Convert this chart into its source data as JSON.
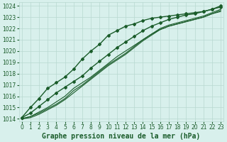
{
  "title": "",
  "xlabel": "Graphe pression niveau de la mer (hPa)",
  "ylabel": "",
  "bg_color": "#d8f0ec",
  "grid_color": "#b8d8d0",
  "line_color": "#1a5c2a",
  "ylim": [
    1013.8,
    1024.3
  ],
  "xlim": [
    -0.3,
    23.3
  ],
  "yticks": [
    1014,
    1015,
    1016,
    1017,
    1018,
    1019,
    1020,
    1021,
    1022,
    1023,
    1024
  ],
  "xticks": [
    0,
    1,
    2,
    3,
    4,
    5,
    6,
    7,
    8,
    9,
    10,
    11,
    12,
    13,
    14,
    15,
    16,
    17,
    18,
    19,
    20,
    21,
    22,
    23
  ],
  "lines": [
    {
      "y": [
        1014.1,
        1015.0,
        1015.8,
        1016.7,
        1017.2,
        1017.7,
        1018.4,
        1019.3,
        1020.0,
        1020.6,
        1021.4,
        1021.8,
        1022.2,
        1022.4,
        1022.7,
        1022.9,
        1023.0,
        1023.1,
        1023.2,
        1023.3,
        1023.4,
        1023.5,
        1023.7,
        1023.9
      ],
      "marker": true,
      "lw": 1.0
    },
    {
      "y": [
        1014.0,
        1014.2,
        1014.6,
        1015.0,
        1015.5,
        1016.0,
        1016.7,
        1017.2,
        1017.7,
        1018.3,
        1018.9,
        1019.5,
        1020.0,
        1020.5,
        1021.0,
        1021.5,
        1021.9,
        1022.2,
        1022.4,
        1022.6,
        1022.8,
        1023.0,
        1023.3,
        1023.6
      ],
      "marker": false,
      "lw": 0.8
    },
    {
      "y": [
        1014.0,
        1014.2,
        1014.5,
        1014.9,
        1015.3,
        1015.8,
        1016.5,
        1017.0,
        1017.6,
        1018.2,
        1018.8,
        1019.3,
        1019.8,
        1020.4,
        1021.0,
        1021.5,
        1022.0,
        1022.3,
        1022.5,
        1022.7,
        1022.9,
        1023.1,
        1023.4,
        1023.7
      ],
      "marker": false,
      "lw": 0.8
    },
    {
      "y": [
        1014.0,
        1014.1,
        1014.4,
        1014.8,
        1015.2,
        1015.7,
        1016.3,
        1016.9,
        1017.5,
        1018.1,
        1018.7,
        1019.2,
        1019.7,
        1020.3,
        1020.9,
        1021.4,
        1021.9,
        1022.2,
        1022.4,
        1022.6,
        1022.8,
        1023.0,
        1023.3,
        1023.5
      ],
      "marker": false,
      "lw": 0.8
    },
    {
      "y": [
        1014.1,
        1014.5,
        1015.1,
        1015.7,
        1016.3,
        1016.8,
        1017.3,
        1017.8,
        1018.5,
        1019.1,
        1019.7,
        1020.3,
        1020.8,
        1021.3,
        1021.8,
        1022.2,
        1022.5,
        1022.8,
        1023.0,
        1023.2,
        1023.3,
        1023.5,
        1023.7,
        1024.0
      ],
      "marker": true,
      "lw": 1.0
    }
  ],
  "tick_fontsize": 5.5,
  "label_fontsize": 7.0
}
